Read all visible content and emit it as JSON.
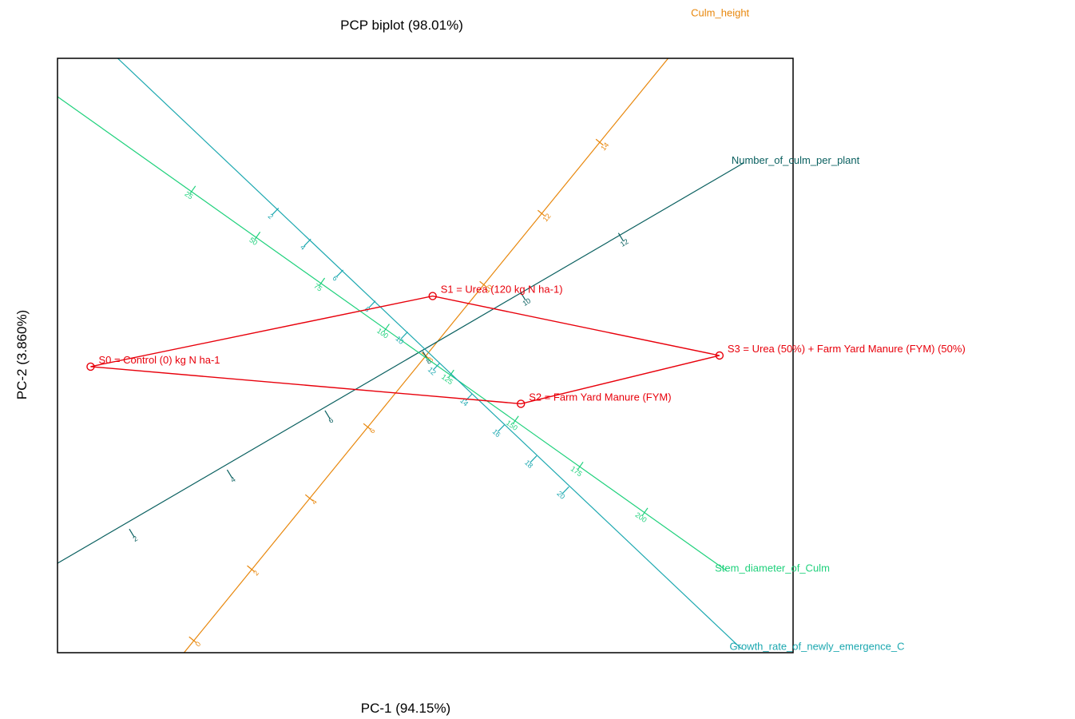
{
  "chart_data": {
    "type": "scatter",
    "title": "PCP biplot (98.01%)",
    "xlabel": "PC-1  (94.15%)",
    "ylabel": "PC-2  (3.860%)",
    "xlim": [
      -1.0,
      1.0
    ],
    "ylim": [
      -0.8,
      0.8
    ],
    "grid": false,
    "legend": "none",
    "origin": [
      0.0,
      0.0
    ],
    "point_color": "#e8000b",
    "points": [
      {
        "label": "S0 = Control   (0) kg N ha-1",
        "x": -0.91,
        "y": -0.03
      },
      {
        "label": "S1 = Urea (120 kg N ha-1)",
        "x": 0.02,
        "y": 0.16
      },
      {
        "label": "S2 = Farm Yard Manure (FYM)",
        "x": 0.26,
        "y": -0.13
      },
      {
        "label": "S3 = Urea (50%) + Farm Yard Manure (FYM) (50%)",
        "x": 0.8,
        "y": 0.0
      }
    ],
    "hull_order": [
      "S0",
      "S1",
      "S3",
      "S2"
    ],
    "variables": [
      {
        "name": "Culm_height",
        "color": "#e8870c",
        "direction": [
          0.735,
          0.89
        ],
        "axis_start": [
          -0.73,
          -0.89
        ],
        "axis_end": [
          0.755,
          0.915
        ],
        "tick_origin": 8,
        "tick_step": 2,
        "tick_unit": 0.215,
        "ticks": [
          "0",
          "2",
          "4",
          "6",
          "8",
          "10",
          "12",
          "14"
        ]
      },
      {
        "name": "Number_of_culm_per_plant",
        "color": "#0a6060",
        "direction": [
          0.858,
          0.514
        ],
        "axis_start": [
          -1.1,
          -0.617
        ],
        "axis_end": [
          0.865,
          0.518
        ],
        "tick_origin": 8,
        "tick_step": 2,
        "tick_unit": 0.31,
        "ticks": [
          "2",
          "4",
          "6",
          "8",
          "10",
          "12"
        ]
      },
      {
        "name": "Stem_diameter_of_Culm",
        "color": "#1fd17c",
        "direction": [
          0.817,
          -0.576
        ],
        "axis_start": [
          -1.14,
          0.795
        ],
        "axis_end": [
          0.82,
          -0.58
        ],
        "tick_origin": 115,
        "tick_step": 25,
        "tick_unit": 0.215,
        "ticks": [
          "25",
          "50",
          "75",
          "100",
          "125",
          "150",
          "175",
          "200"
        ]
      },
      {
        "name": "Growth_rate_of_newly_emergence_C",
        "color": "#1ca8b0",
        "direction": [
          0.725,
          -0.689
        ],
        "axis_start": [
          -0.975,
          0.93
        ],
        "axis_end": [
          0.86,
          -0.79
        ],
        "tick_origin": 11.3,
        "tick_step": 2,
        "tick_unit": 0.121,
        "ticks": [
          "2",
          "4",
          "6",
          "8",
          "10",
          "12",
          "14",
          "16",
          "18",
          "20"
        ]
      }
    ]
  }
}
